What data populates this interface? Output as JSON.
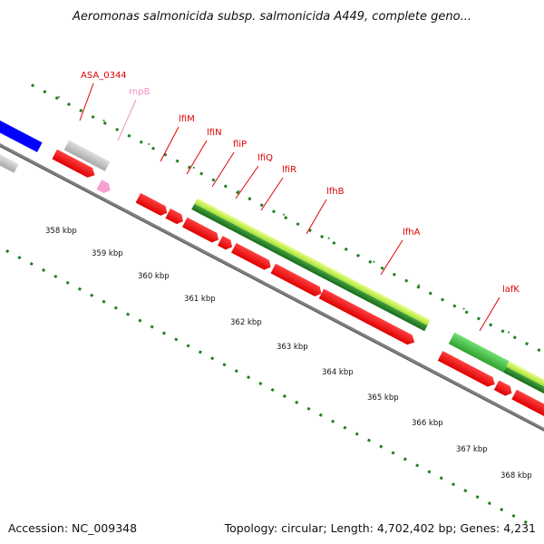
{
  "title": "Aeromonas salmonicida subsp. salmonicida A449, complete geno...",
  "footer": {
    "accession": "Accession: NC_009348",
    "topology": "Topology: circular; Length: 4,702,402 bp; Genes: 4,231"
  },
  "colors": {
    "cds": "#ff0000",
    "other_gene": "#c0c0c0",
    "rna": "#f5a0d0",
    "light_green": "#c8f050",
    "mid_green": "#40c040",
    "dark_green": "#208020",
    "blue": "#0000ff",
    "backbone": "#808080",
    "dots": "#208020",
    "label": "#e00000",
    "rna_label": "#f090c0"
  },
  "scale_labels": [
    "358 kbp",
    "359 kbp",
    "360 kbp",
    "361 kbp",
    "362 kbp",
    "363 kbp",
    "364 kbp",
    "365 kbp",
    "366 kbp",
    "367 kbp",
    "368 kbp"
  ],
  "gene_labels": [
    {
      "name": "ASA_0344",
      "kind": "cds"
    },
    {
      "name": "rnpB",
      "kind": "rna"
    },
    {
      "name": "lfiM",
      "kind": "cds"
    },
    {
      "name": "lfiN",
      "kind": "cds"
    },
    {
      "name": "fliP",
      "kind": "cds"
    },
    {
      "name": "lfiQ",
      "kind": "cds"
    },
    {
      "name": "lfiR",
      "kind": "cds"
    },
    {
      "name": "lfhB",
      "kind": "cds"
    },
    {
      "name": "lfhA",
      "kind": "cds"
    },
    {
      "name": "lafK",
      "kind": "cds"
    }
  ]
}
